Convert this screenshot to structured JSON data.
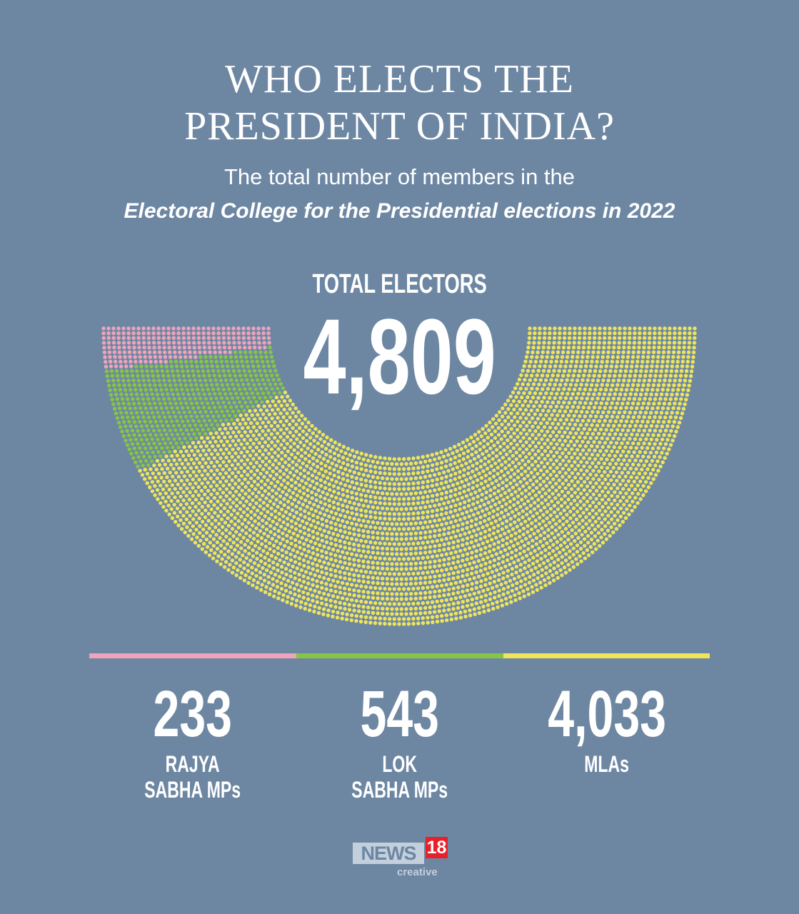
{
  "title_line1": "WHO ELECTS THE",
  "title_line2": "PRESIDENT OF INDIA?",
  "subtitle_line1": "The total number of members in the",
  "subtitle_line2": "Electoral College for the Presidential elections in 2022",
  "total_label": "TOTAL ELECTORS",
  "total_value": "4,809",
  "chart_data": {
    "type": "parliament-dot",
    "title": "TOTAL ELECTORS 4,809",
    "total": 4809,
    "series": [
      {
        "name": "RAJYA SABHA MPs",
        "value": 233,
        "display": "233",
        "label1": "RAJYA",
        "label2": "SABHA MPs",
        "color": "#f0a3b9"
      },
      {
        "name": "LOK SABHA MPs",
        "value": 543,
        "display": "543",
        "label1": "LOK",
        "label2": "SABHA MPs",
        "color": "#86c546"
      },
      {
        "name": "MLAs",
        "value": 4033,
        "display": "4,033",
        "label1": "MLAs",
        "label2": "",
        "color": "#efe55a"
      }
    ]
  },
  "logo": {
    "news": "NEWS",
    "num": "18",
    "sub": "creative"
  }
}
